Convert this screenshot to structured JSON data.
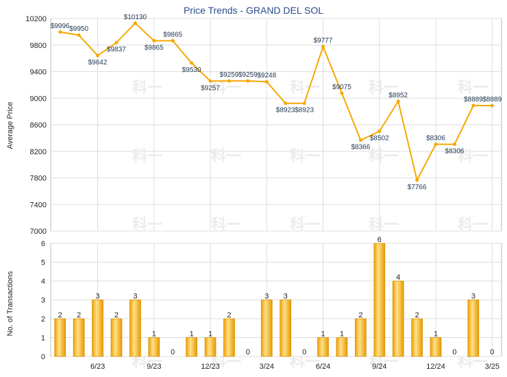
{
  "chart_data": [
    {
      "type": "line",
      "title": "Price Trends - GRAND DEL SOL",
      "ylabel": "Average Price",
      "ylim": [
        7000,
        10200
      ],
      "yticks": [
        7000,
        7400,
        7800,
        8200,
        8600,
        9000,
        9400,
        9800,
        10200
      ],
      "values": [
        9996,
        9950,
        9642,
        9837,
        10130,
        9865,
        9865,
        9530,
        9257,
        9259,
        9259,
        9248,
        8923,
        8923,
        9777,
        9075,
        8366,
        8502,
        8952,
        7766,
        8306,
        8306,
        8889,
        8889
      ],
      "data_labels": [
        "$9996",
        "$9950",
        "$9642",
        "$9837",
        "$10130",
        "$9865",
        "$9865",
        "$9530",
        "$9257",
        "$9259",
        "$9259",
        "$9248",
        "$8923",
        "$8923",
        "$9777",
        "$9075",
        "$8366",
        "$8502",
        "$8952",
        "$7766",
        "$8306",
        "$8306",
        "$8889",
        "$8889"
      ],
      "color": "#f5a800",
      "grid": true
    },
    {
      "type": "bar",
      "ylabel": "No. of Transactions",
      "ylim": [
        0,
        6
      ],
      "yticks": [
        0,
        1,
        2,
        3,
        4,
        5,
        6
      ],
      "values": [
        2,
        2,
        3,
        2,
        3,
        1,
        0,
        1,
        1,
        2,
        0,
        3,
        3,
        0,
        1,
        1,
        2,
        6,
        4,
        2,
        1,
        0,
        3,
        0
      ],
      "data_labels": [
        "2",
        "2",
        "3",
        "2",
        "3",
        "1",
        "0",
        "1",
        "1",
        "2",
        "0",
        "3",
        "3",
        "0",
        "1",
        "1",
        "2",
        "6",
        "4",
        "2",
        "1",
        "0",
        "3",
        "0"
      ],
      "x_tick_labels": [
        {
          "index": 2,
          "label": "6/23"
        },
        {
          "index": 5,
          "label": "9/23"
        },
        {
          "index": 8,
          "label": "12/23"
        },
        {
          "index": 11,
          "label": "3/24"
        },
        {
          "index": 14,
          "label": "6/24"
        },
        {
          "index": 17,
          "label": "9/24"
        },
        {
          "index": 20,
          "label": "12/24"
        },
        {
          "index": 23,
          "label": "3/25"
        }
      ],
      "color": "#f5a800",
      "grid": true
    }
  ],
  "watermark": "科一"
}
